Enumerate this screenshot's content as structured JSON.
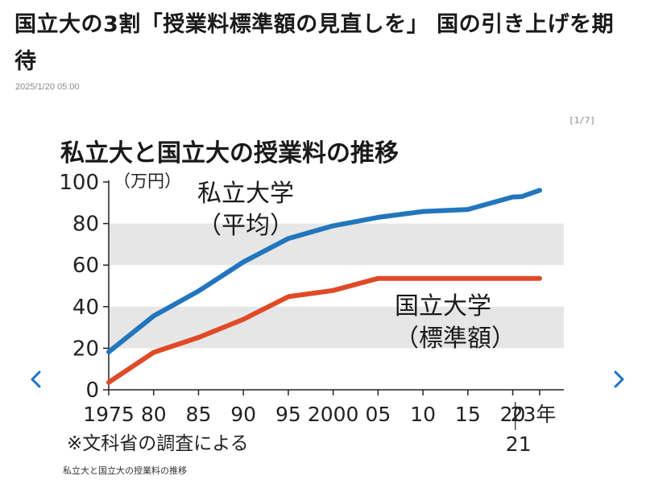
{
  "article": {
    "title": "国立大の3割「授業料標準額の見直しを」 国の引き上げを期待",
    "date": "2025/1/20 05:00"
  },
  "gallery": {
    "counter": "[1/7]",
    "caption": "私立大と国立大の授業料の推移",
    "prev_icon": "chevron-left-icon",
    "next_icon": "chevron-right-icon",
    "arrow_color": "#1a73c8"
  },
  "chart_data": {
    "type": "line",
    "title": "私立大と国立大の授業料の推移",
    "unit_label": "（万円）",
    "xlabel": "",
    "ylabel": "",
    "ylim": [
      0,
      100
    ],
    "yticks": [
      0,
      20,
      40,
      60,
      80,
      100
    ],
    "xlim": [
      1975,
      2023
    ],
    "xticks": [
      {
        "value": 1975,
        "label": "1975"
      },
      {
        "value": 1980,
        "label": "80"
      },
      {
        "value": 1985,
        "label": "85"
      },
      {
        "value": 1990,
        "label": "90"
      },
      {
        "value": 1995,
        "label": "95"
      },
      {
        "value": 2000,
        "label": "2000"
      },
      {
        "value": 2005,
        "label": "05"
      },
      {
        "value": 2010,
        "label": "10"
      },
      {
        "value": 2015,
        "label": "15"
      },
      {
        "value": 2020,
        "label": "20"
      },
      {
        "value": 2023,
        "label": "23年"
      }
    ],
    "extra_tick": {
      "value": 2021,
      "label": "21"
    },
    "bands": [
      [
        20,
        40
      ],
      [
        60,
        80
      ]
    ],
    "note": "※文科省の調査による",
    "series": [
      {
        "name": "私立大学（平均）",
        "label_lines": [
          "私立大学",
          "（平均）"
        ],
        "color": "#2176bd",
        "x": [
          1975,
          1980,
          1985,
          1990,
          1995,
          2000,
          2005,
          2010,
          2015,
          2020,
          2021,
          2023
        ],
        "values": [
          18.2,
          35.5,
          47.5,
          61.5,
          72.8,
          78.9,
          83.0,
          85.8,
          86.8,
          92.8,
          93.0,
          96.0
        ]
      },
      {
        "name": "国立大学（標準額）",
        "label_lines": [
          "国立大学",
          "（標準額）"
        ],
        "color": "#e04a26",
        "x": [
          1975,
          1980,
          1985,
          1990,
          1995,
          2000,
          2005,
          2010,
          2015,
          2020,
          2021,
          2023
        ],
        "values": [
          3.6,
          18.0,
          25.2,
          33.9,
          44.8,
          47.8,
          53.6,
          53.6,
          53.6,
          53.6,
          53.6,
          53.6
        ]
      }
    ]
  }
}
